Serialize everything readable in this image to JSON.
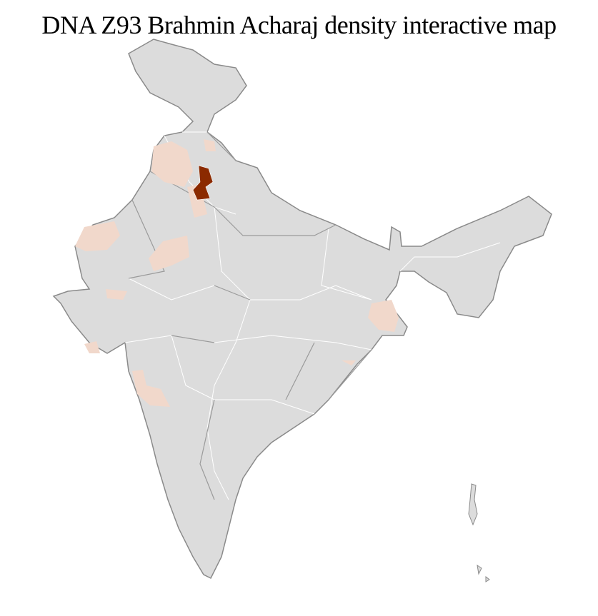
{
  "title": "DNA Z93 Brahmin Acharaj density interactive map",
  "colors": {
    "background_region": "#dcdcdc",
    "outline": "#8a8a8a",
    "district_border": "#ffffff",
    "low_density": "#f1d8cb",
    "high_density": "#8b2a00"
  },
  "legend": null
}
